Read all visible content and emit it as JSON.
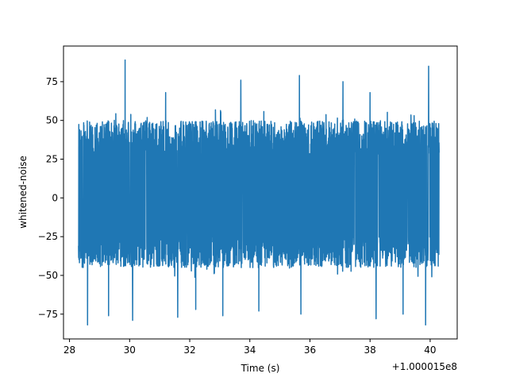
{
  "chart_data": {
    "type": "line",
    "title": "",
    "xlabel": "Time (s)",
    "ylabel": "whitened-noise",
    "x_offset_label": "+1.000015e8",
    "xlim": [
      27.8,
      40.9
    ],
    "ylim": [
      -91,
      98
    ],
    "x_ticks": [
      28,
      30,
      32,
      34,
      36,
      38,
      40
    ],
    "x_tick_labels": [
      "28",
      "30",
      "32",
      "34",
      "36",
      "38",
      "40"
    ],
    "y_ticks": [
      -75,
      -50,
      -25,
      0,
      25,
      50,
      75
    ],
    "y_tick_labels": [
      "−75",
      "−50",
      "−25",
      "0",
      "25",
      "50",
      "75"
    ],
    "grid": false,
    "colors": {
      "series": "#1f77b4",
      "axes": "#000000"
    },
    "series": [
      {
        "name": "",
        "x_start": 28.3,
        "x_end": 40.3,
        "band_upper": 50,
        "band_lower": -45,
        "spikes": [
          {
            "x": 29.85,
            "y": 89
          },
          {
            "x": 39.95,
            "y": 85
          },
          {
            "x": 35.65,
            "y": 79
          },
          {
            "x": 33.7,
            "y": 76
          },
          {
            "x": 37.1,
            "y": 75
          },
          {
            "x": 31.2,
            "y": 68
          },
          {
            "x": 38.0,
            "y": 68
          },
          {
            "x": 28.6,
            "y": -82
          },
          {
            "x": 29.3,
            "y": -76
          },
          {
            "x": 30.1,
            "y": -79
          },
          {
            "x": 31.6,
            "y": -77
          },
          {
            "x": 32.2,
            "y": -72
          },
          {
            "x": 33.1,
            "y": -76
          },
          {
            "x": 34.3,
            "y": -73
          },
          {
            "x": 35.7,
            "y": -75
          },
          {
            "x": 38.2,
            "y": -78
          },
          {
            "x": 39.1,
            "y": -75
          },
          {
            "x": 39.85,
            "y": -82
          }
        ]
      }
    ]
  }
}
